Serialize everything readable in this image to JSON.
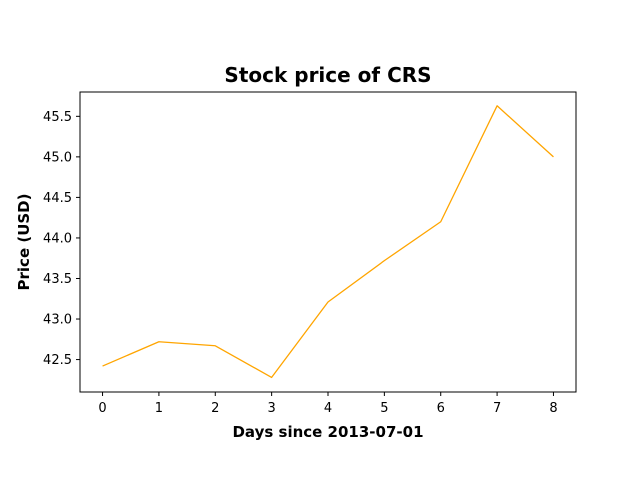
{
  "chart_data": {
    "type": "line",
    "title": "Stock price of CRS",
    "xlabel": "Days since 2013-07-01",
    "ylabel": "Price (USD)",
    "x": [
      0,
      1,
      2,
      3,
      4,
      5,
      6,
      7,
      8
    ],
    "series": [
      {
        "values": [
          42.42,
          42.72,
          42.67,
          42.28,
          43.21,
          43.72,
          44.2,
          45.63,
          45.0
        ],
        "color": "#ffa500"
      }
    ],
    "xlim": [
      -0.4,
      8.4
    ],
    "ylim": [
      42.1,
      45.8
    ],
    "xticks": [
      0,
      1,
      2,
      3,
      4,
      5,
      6,
      7,
      8
    ],
    "yticks": [
      42.5,
      43.0,
      43.5,
      44.0,
      44.5,
      45.0,
      45.5
    ],
    "ytick_labels": [
      "42.5",
      "43.0",
      "43.5",
      "44.0",
      "44.5",
      "45.0",
      "45.5"
    ],
    "grid": false,
    "legend": "none"
  }
}
